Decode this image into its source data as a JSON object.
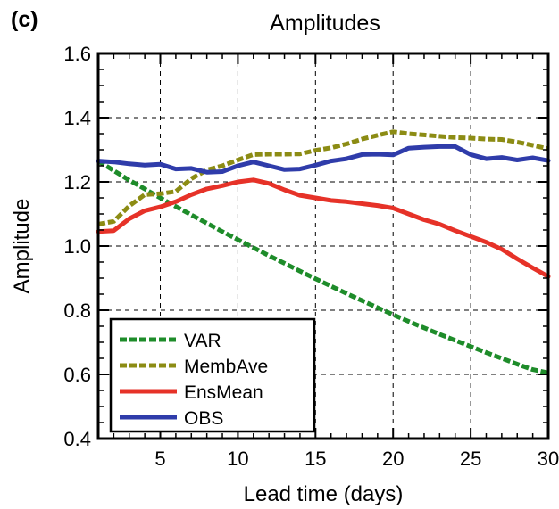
{
  "panel_label": "(c)",
  "chart_data": {
    "type": "line",
    "title": "Amplitudes",
    "xlabel": "Lead time (days)",
    "ylabel": "Amplitude",
    "xlim": [
      1,
      30
    ],
    "ylim": [
      0.4,
      1.6
    ],
    "xticks": [
      5,
      10,
      15,
      20,
      25,
      30
    ],
    "yticks": [
      0.4,
      0.6,
      0.8,
      1.0,
      1.2,
      1.4,
      1.6
    ],
    "ytick_labels": [
      "0.4",
      "0.6",
      "0.8",
      "1.0",
      "1.2",
      "1.4",
      "1.6"
    ],
    "grid": true,
    "legend_position": "bottom-left",
    "x": [
      1,
      2,
      3,
      4,
      5,
      6,
      7,
      8,
      9,
      10,
      11,
      12,
      13,
      14,
      15,
      16,
      17,
      18,
      19,
      20,
      21,
      22,
      23,
      24,
      25,
      26,
      27,
      28,
      29,
      30
    ],
    "series": [
      {
        "name": "VAR",
        "color": "#1e8c2a",
        "style": "dashed",
        "values": [
          1.265,
          1.235,
          1.205,
          1.178,
          1.15,
          1.123,
          1.097,
          1.071,
          1.045,
          1.02,
          0.995,
          0.97,
          0.946,
          0.922,
          0.898,
          0.875,
          0.852,
          0.83,
          0.808,
          0.786,
          0.765,
          0.745,
          0.725,
          0.706,
          0.687,
          0.668,
          0.65,
          0.632,
          0.615,
          0.605
        ]
      },
      {
        "name": "MembAve",
        "color": "#8c8c14",
        "style": "dashed",
        "values": [
          1.068,
          1.077,
          1.125,
          1.16,
          1.163,
          1.17,
          1.21,
          1.237,
          1.25,
          1.268,
          1.285,
          1.286,
          1.286,
          1.287,
          1.298,
          1.306,
          1.318,
          1.333,
          1.345,
          1.356,
          1.35,
          1.346,
          1.342,
          1.338,
          1.336,
          1.333,
          1.332,
          1.324,
          1.314,
          1.303
        ]
      },
      {
        "name": "EnsMean",
        "color": "#e63228",
        "style": "solid",
        "values": [
          1.045,
          1.048,
          1.085,
          1.11,
          1.122,
          1.138,
          1.16,
          1.178,
          1.188,
          1.2,
          1.206,
          1.195,
          1.175,
          1.158,
          1.15,
          1.142,
          1.138,
          1.132,
          1.126,
          1.118,
          1.1,
          1.082,
          1.068,
          1.048,
          1.03,
          1.012,
          0.99,
          0.96,
          0.932,
          0.905
        ]
      },
      {
        "name": "OBS",
        "color": "#2f3caa",
        "style": "solid",
        "values": [
          1.265,
          1.262,
          1.256,
          1.252,
          1.255,
          1.24,
          1.242,
          1.23,
          1.232,
          1.25,
          1.262,
          1.25,
          1.238,
          1.24,
          1.252,
          1.265,
          1.272,
          1.285,
          1.286,
          1.284,
          1.305,
          1.308,
          1.31,
          1.31,
          1.285,
          1.272,
          1.276,
          1.268,
          1.275,
          1.266
        ]
      }
    ]
  }
}
